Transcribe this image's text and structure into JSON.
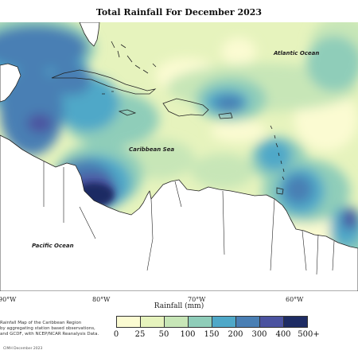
{
  "title": "Total Rainfall For December 2023",
  "labels": {
    "atlantic": "Atlantic Ocean",
    "caribbean": "Caribbean Sea",
    "pacific": "Pacific Ocean"
  },
  "longitudes": [
    "90°W",
    "80°W",
    "70°W",
    "60°W"
  ],
  "axis_label": "Rainfall (mm)",
  "note_lines": [
    "Rainfall Map of the Caribbean Region",
    "by aggregating station based observations,",
    "and GCDF, with NCEP/NCAR Reanalysis Data."
  ],
  "credit": "CIMH December 2023",
  "legend": {
    "ticks": [
      "0",
      "25",
      "50",
      "100",
      "150",
      "200",
      "300",
      "400",
      "500+"
    ],
    "colors": [
      "#fbfbd2",
      "#e6f3bd",
      "#c7e6b7",
      "#8fcdb9",
      "#4fa8c8",
      "#4a7fb4",
      "#4b53a0",
      "#1e2c64"
    ]
  }
}
